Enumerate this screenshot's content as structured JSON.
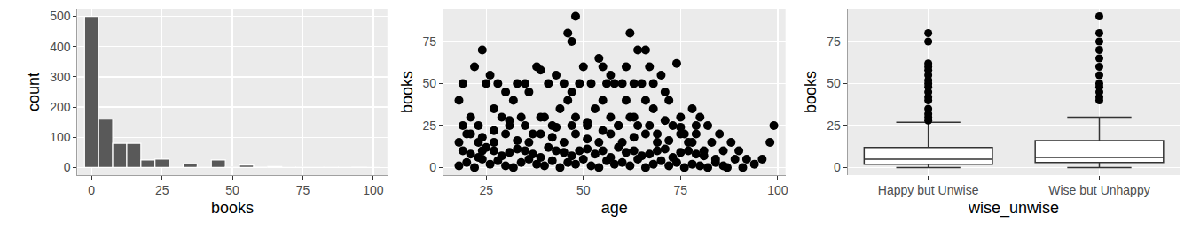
{
  "chart_data": [
    {
      "type": "histogram",
      "xlabel": "books",
      "ylabel": "count",
      "bins": [
        -2.5,
        2.5,
        7.5,
        12.5,
        17.5,
        22.5,
        27.5,
        32.5,
        37.5,
        42.5,
        47.5,
        52.5,
        57.5,
        62.5,
        67.5,
        72.5,
        77.5,
        82.5,
        87.5,
        92.5,
        97.5,
        102.5
      ],
      "values": [
        500,
        160,
        80,
        80,
        25,
        28,
        2,
        12,
        2,
        25,
        2,
        8,
        1,
        3,
        0,
        2,
        0,
        2,
        0,
        1,
        0
      ],
      "color": "#595959",
      "xlim": [
        -5,
        105
      ],
      "xticks": [
        0,
        25,
        50,
        75,
        100
      ],
      "ylim": [
        -25,
        525
      ],
      "yticks": [
        0,
        100,
        200,
        300,
        400,
        500
      ],
      "grid": true
    },
    {
      "type": "scatter",
      "xlabel": "age",
      "ylabel": "books",
      "color": "#000000",
      "x": [
        48,
        46,
        47,
        62,
        66,
        64,
        24,
        22,
        19,
        18,
        26,
        25,
        28,
        33,
        35,
        38,
        39,
        30,
        32,
        36,
        41,
        43,
        45,
        47,
        49,
        50,
        52,
        54,
        55,
        56,
        57,
        58,
        60,
        61,
        63,
        65,
        67,
        68,
        70,
        72,
        74,
        75,
        78,
        80,
        82,
        85,
        88,
        90,
        92,
        98,
        99,
        96,
        19,
        20,
        21,
        23,
        24,
        27,
        29,
        31,
        34,
        37,
        40,
        42,
        44,
        46,
        48,
        51,
        53,
        55,
        57,
        59,
        61,
        62,
        64,
        66,
        68,
        69,
        71,
        73,
        76,
        77,
        79,
        81,
        83,
        84,
        86,
        87,
        89,
        91,
        94,
        18,
        20,
        22,
        24,
        26,
        28,
        30,
        32,
        34,
        36,
        38,
        40,
        42,
        44,
        46,
        48,
        50,
        52,
        54,
        56,
        58,
        60,
        62,
        64,
        66,
        68,
        70,
        72,
        74,
        76,
        78,
        80,
        82,
        84,
        86,
        19,
        21,
        23,
        25,
        27,
        29,
        31,
        33,
        35,
        37,
        39,
        41,
        43,
        45,
        47,
        49,
        51,
        53,
        55,
        57,
        59,
        61,
        63,
        65,
        67,
        69,
        71,
        73,
        75,
        77,
        79,
        81,
        18,
        21,
        24,
        27,
        30,
        33,
        36,
        39,
        42,
        45,
        48,
        51,
        54,
        57,
        60,
        63,
        66,
        69,
        72,
        75,
        78,
        23,
        27,
        31,
        35,
        39,
        43,
        47,
        51,
        55,
        59,
        63,
        67,
        71,
        75,
        79
      ],
      "values": [
        90,
        80,
        75,
        80,
        70,
        70,
        70,
        60,
        50,
        40,
        55,
        50,
        50,
        50,
        50,
        60,
        58,
        45,
        40,
        45,
        50,
        55,
        50,
        45,
        50,
        60,
        50,
        65,
        60,
        50,
        55,
        50,
        50,
        60,
        50,
        50,
        60,
        50,
        55,
        40,
        62,
        30,
        35,
        30,
        25,
        20,
        15,
        10,
        5,
        15,
        25,
        5,
        25,
        20,
        30,
        15,
        10,
        35,
        30,
        25,
        30,
        20,
        30,
        25,
        35,
        40,
        30,
        25,
        35,
        40,
        30,
        25,
        40,
        30,
        25,
        40,
        35,
        20,
        45,
        25,
        20,
        15,
        20,
        10,
        15,
        5,
        10,
        0,
        5,
        0,
        2,
        1,
        3,
        0,
        5,
        2,
        4,
        1,
        0,
        3,
        5,
        2,
        1,
        4,
        0,
        3,
        2,
        5,
        1,
        0,
        4,
        2,
        3,
        1,
        5,
        0,
        2,
        4,
        1,
        3,
        0,
        2,
        1,
        0,
        3,
        1,
        10,
        8,
        6,
        12,
        10,
        7,
        9,
        11,
        10,
        8,
        6,
        12,
        10,
        9,
        7,
        10,
        11,
        8,
        10,
        6,
        12,
        9,
        10,
        7,
        8,
        10,
        11,
        6,
        9,
        10,
        8,
        7,
        15,
        20,
        18,
        15,
        20,
        16,
        15,
        20,
        18,
        15,
        20,
        17,
        15,
        20,
        15,
        18,
        20,
        15,
        16,
        20,
        15,
        25,
        22,
        28,
        25,
        30,
        24,
        25,
        27,
        22,
        25,
        30,
        25,
        28,
        24,
        25
      ],
      "xlim": [
        14,
        102
      ],
      "xticks": [
        25,
        50,
        75,
        100
      ],
      "ylim": [
        -4.5,
        94.5
      ],
      "yticks": [
        0,
        25,
        50,
        75
      ],
      "grid": true
    },
    {
      "type": "box",
      "xlabel": "wise_unwise",
      "ylabel": "books",
      "color": "#333333",
      "categories": [
        "Happy but Unwise",
        "Wise but Unhappy"
      ],
      "boxes": [
        {
          "lower_whisker": 0,
          "q1": 2,
          "median": 5,
          "q3": 12,
          "upper_whisker": 27,
          "outliers": [
            28,
            30,
            32,
            35,
            40,
            42,
            45,
            48,
            50,
            52,
            55,
            58,
            60,
            62,
            75,
            80
          ]
        },
        {
          "lower_whisker": 0,
          "q1": 3,
          "median": 6,
          "q3": 16,
          "upper_whisker": 30,
          "outliers": [
            40,
            42,
            45,
            48,
            50,
            55,
            60,
            65,
            70,
            75,
            80,
            90
          ]
        }
      ],
      "ylim": [
        -4.5,
        94.5
      ],
      "yticks": [
        0,
        25,
        50,
        75
      ],
      "grid": true
    }
  ]
}
